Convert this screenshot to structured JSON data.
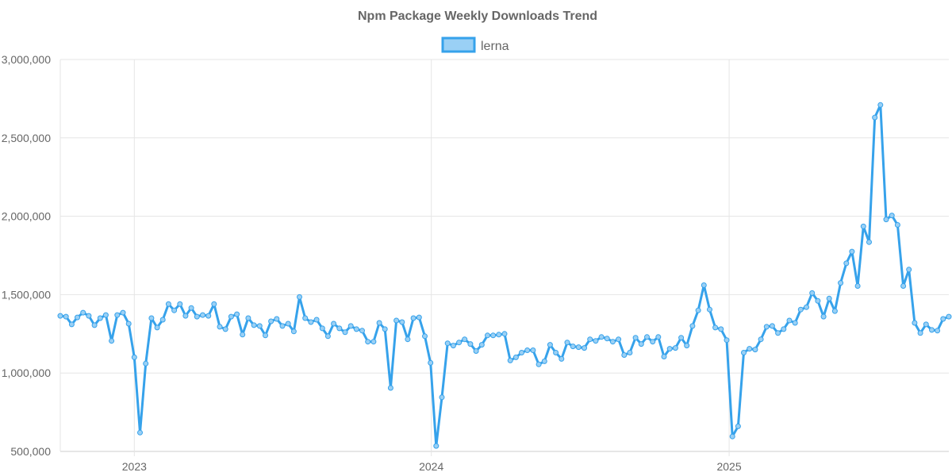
{
  "chart_data": {
    "type": "line",
    "title": "Npm Package Weekly Downloads Trend",
    "legend": {
      "position": "top-center"
    },
    "series": [
      {
        "name": "lerna",
        "color": "#36a2eb",
        "fill": "#9ad0f5",
        "points": [
          [
            "2022-10-02",
            1365000
          ],
          [
            "2022-10-09",
            1360000
          ],
          [
            "2022-10-16",
            1310000
          ],
          [
            "2022-10-23",
            1355000
          ],
          [
            "2022-10-30",
            1385000
          ],
          [
            "2022-11-06",
            1365000
          ],
          [
            "2022-11-13",
            1305000
          ],
          [
            "2022-11-20",
            1350000
          ],
          [
            "2022-11-27",
            1370000
          ],
          [
            "2022-12-04",
            1205000
          ],
          [
            "2022-12-11",
            1370000
          ],
          [
            "2022-12-18",
            1385000
          ],
          [
            "2022-12-25",
            1315000
          ],
          [
            "2023-01-01",
            1100000
          ],
          [
            "2023-01-08",
            620000
          ],
          [
            "2023-01-15",
            1060000
          ],
          [
            "2023-01-22",
            1350000
          ],
          [
            "2023-01-29",
            1290000
          ],
          [
            "2023-02-05",
            1340000
          ],
          [
            "2023-02-12",
            1440000
          ],
          [
            "2023-02-19",
            1400000
          ],
          [
            "2023-02-26",
            1440000
          ],
          [
            "2023-03-05",
            1365000
          ],
          [
            "2023-03-12",
            1415000
          ],
          [
            "2023-03-19",
            1360000
          ],
          [
            "2023-03-26",
            1370000
          ],
          [
            "2023-04-02",
            1365000
          ],
          [
            "2023-04-09",
            1440000
          ],
          [
            "2023-04-16",
            1295000
          ],
          [
            "2023-04-23",
            1280000
          ],
          [
            "2023-04-30",
            1360000
          ],
          [
            "2023-05-07",
            1375000
          ],
          [
            "2023-05-14",
            1245000
          ],
          [
            "2023-05-21",
            1350000
          ],
          [
            "2023-05-28",
            1305000
          ],
          [
            "2023-06-04",
            1300000
          ],
          [
            "2023-06-11",
            1240000
          ],
          [
            "2023-06-18",
            1330000
          ],
          [
            "2023-06-25",
            1345000
          ],
          [
            "2023-07-02",
            1300000
          ],
          [
            "2023-07-09",
            1315000
          ],
          [
            "2023-07-16",
            1265000
          ],
          [
            "2023-07-23",
            1485000
          ],
          [
            "2023-07-30",
            1350000
          ],
          [
            "2023-08-06",
            1325000
          ],
          [
            "2023-08-13",
            1340000
          ],
          [
            "2023-08-20",
            1285000
          ],
          [
            "2023-08-27",
            1235000
          ],
          [
            "2023-09-03",
            1315000
          ],
          [
            "2023-09-10",
            1285000
          ],
          [
            "2023-09-17",
            1260000
          ],
          [
            "2023-09-24",
            1300000
          ],
          [
            "2023-10-01",
            1280000
          ],
          [
            "2023-10-08",
            1270000
          ],
          [
            "2023-10-15",
            1200000
          ],
          [
            "2023-10-22",
            1200000
          ],
          [
            "2023-10-29",
            1320000
          ],
          [
            "2023-11-05",
            1280000
          ],
          [
            "2023-11-12",
            905000
          ],
          [
            "2023-11-19",
            1335000
          ],
          [
            "2023-11-26",
            1325000
          ],
          [
            "2023-12-03",
            1215000
          ],
          [
            "2023-12-10",
            1350000
          ],
          [
            "2023-12-17",
            1355000
          ],
          [
            "2023-12-24",
            1235000
          ],
          [
            "2023-12-31",
            1065000
          ],
          [
            "2024-01-07",
            535000
          ],
          [
            "2024-01-14",
            845000
          ],
          [
            "2024-01-21",
            1190000
          ],
          [
            "2024-01-28",
            1175000
          ],
          [
            "2024-02-04",
            1195000
          ],
          [
            "2024-02-11",
            1215000
          ],
          [
            "2024-02-18",
            1185000
          ],
          [
            "2024-02-25",
            1140000
          ],
          [
            "2024-03-03",
            1180000
          ],
          [
            "2024-03-10",
            1240000
          ],
          [
            "2024-03-17",
            1240000
          ],
          [
            "2024-03-24",
            1245000
          ],
          [
            "2024-03-31",
            1250000
          ],
          [
            "2024-04-07",
            1080000
          ],
          [
            "2024-04-14",
            1100000
          ],
          [
            "2024-04-21",
            1130000
          ],
          [
            "2024-04-28",
            1145000
          ],
          [
            "2024-05-05",
            1145000
          ],
          [
            "2024-05-12",
            1055000
          ],
          [
            "2024-05-19",
            1075000
          ],
          [
            "2024-05-26",
            1180000
          ],
          [
            "2024-06-02",
            1130000
          ],
          [
            "2024-06-09",
            1090000
          ],
          [
            "2024-06-16",
            1195000
          ],
          [
            "2024-06-23",
            1170000
          ],
          [
            "2024-06-30",
            1165000
          ],
          [
            "2024-07-07",
            1160000
          ],
          [
            "2024-07-14",
            1215000
          ],
          [
            "2024-07-21",
            1205000
          ],
          [
            "2024-07-28",
            1230000
          ],
          [
            "2024-08-04",
            1220000
          ],
          [
            "2024-08-11",
            1200000
          ],
          [
            "2024-08-18",
            1215000
          ],
          [
            "2024-08-25",
            1115000
          ],
          [
            "2024-09-01",
            1130000
          ],
          [
            "2024-09-08",
            1225000
          ],
          [
            "2024-09-15",
            1185000
          ],
          [
            "2024-09-22",
            1230000
          ],
          [
            "2024-09-29",
            1200000
          ],
          [
            "2024-10-06",
            1230000
          ],
          [
            "2024-10-13",
            1105000
          ],
          [
            "2024-10-20",
            1155000
          ],
          [
            "2024-10-27",
            1160000
          ],
          [
            "2024-11-03",
            1225000
          ],
          [
            "2024-11-10",
            1175000
          ],
          [
            "2024-11-17",
            1300000
          ],
          [
            "2024-11-24",
            1400000
          ],
          [
            "2024-12-01",
            1560000
          ],
          [
            "2024-12-08",
            1405000
          ],
          [
            "2024-12-15",
            1290000
          ],
          [
            "2024-12-22",
            1280000
          ],
          [
            "2024-12-29",
            1210000
          ],
          [
            "2025-01-05",
            595000
          ],
          [
            "2025-01-12",
            660000
          ],
          [
            "2025-01-19",
            1130000
          ],
          [
            "2025-01-26",
            1155000
          ],
          [
            "2025-02-02",
            1150000
          ],
          [
            "2025-02-09",
            1215000
          ],
          [
            "2025-02-16",
            1295000
          ],
          [
            "2025-02-23",
            1300000
          ],
          [
            "2025-03-02",
            1255000
          ],
          [
            "2025-03-09",
            1280000
          ],
          [
            "2025-03-16",
            1335000
          ],
          [
            "2025-03-23",
            1320000
          ],
          [
            "2025-03-30",
            1405000
          ],
          [
            "2025-04-06",
            1420000
          ],
          [
            "2025-04-13",
            1510000
          ],
          [
            "2025-04-20",
            1460000
          ],
          [
            "2025-04-27",
            1360000
          ],
          [
            "2025-05-04",
            1475000
          ],
          [
            "2025-05-11",
            1395000
          ],
          [
            "2025-05-18",
            1575000
          ],
          [
            "2025-05-25",
            1700000
          ],
          [
            "2025-06-01",
            1775000
          ],
          [
            "2025-06-08",
            1555000
          ],
          [
            "2025-06-15",
            1935000
          ],
          [
            "2025-06-22",
            1835000
          ],
          [
            "2025-06-29",
            2630000
          ],
          [
            "2025-07-06",
            2710000
          ],
          [
            "2025-07-13",
            1980000
          ],
          [
            "2025-07-20",
            2005000
          ],
          [
            "2025-07-27",
            1945000
          ],
          [
            "2025-08-03",
            1555000
          ],
          [
            "2025-08-10",
            1660000
          ],
          [
            "2025-08-17",
            1320000
          ],
          [
            "2025-08-24",
            1255000
          ],
          [
            "2025-08-31",
            1310000
          ],
          [
            "2025-09-07",
            1275000
          ],
          [
            "2025-09-14",
            1270000
          ],
          [
            "2025-09-21",
            1345000
          ],
          [
            "2025-09-28",
            1360000
          ]
        ]
      }
    ],
    "xaxis": {
      "type": "time",
      "ticks": [
        "2023",
        "2024",
        "2025"
      ]
    },
    "yaxis": {
      "ylim": [
        500000,
        3000000
      ],
      "ticks": [
        "500,000",
        "1,000,000",
        "1,500,000",
        "2,000,000",
        "2,500,000",
        "3,000,000"
      ]
    },
    "grid": true
  }
}
